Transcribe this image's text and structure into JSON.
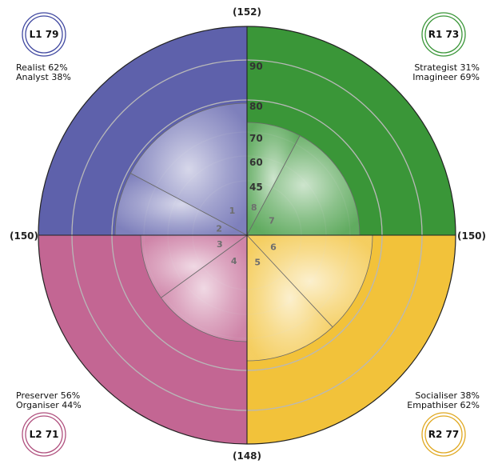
{
  "chart_data": {
    "type": "polar-area",
    "title": "",
    "axis_totals": {
      "top": "(152)",
      "left": "(150)",
      "right": "(150)",
      "bottom": "(148)"
    },
    "ring_ticks": [
      "45",
      "60",
      "70",
      "80",
      "90"
    ],
    "ring_values": [
      45,
      60,
      70,
      80,
      90
    ],
    "quadrants": [
      {
        "id": "L1",
        "badge": "L1 79",
        "color": "#5e61ab",
        "ring_color": "#4048a0",
        "lines": [
          "Realist 62%",
          "Analyst 38%"
        ],
        "corner": "top-left"
      },
      {
        "id": "R1",
        "badge": "R1 73",
        "color": "#3a9638",
        "ring_color": "#3a9638",
        "lines": [
          "Strategist 31%",
          "Imagineer 69%"
        ],
        "corner": "top-right"
      },
      {
        "id": "R2",
        "badge": "R2 77",
        "color": "#f2c23a",
        "ring_color": "#e0a820",
        "lines": [
          "Socialiser 38%",
          "Empathiser 62%"
        ],
        "corner": "bottom-right"
      },
      {
        "id": "L2",
        "badge": "L2 71",
        "color": "#c36693",
        "ring_color": "#b0507e",
        "lines": [
          "Preserver 56%",
          "Organiser 44%"
        ],
        "corner": "bottom-left"
      }
    ],
    "wedges": [
      {
        "quadrant": "R1",
        "label": "8",
        "start_deg": 0,
        "end_deg": 28,
        "value": 73
      },
      {
        "quadrant": "R1",
        "label": "7",
        "start_deg": 28,
        "end_deg": 90,
        "value": 73
      },
      {
        "quadrant": "R2",
        "label": "6",
        "start_deg": 90,
        "end_deg": 137,
        "value": 77
      },
      {
        "quadrant": "R2",
        "label": "5",
        "start_deg": 137,
        "end_deg": 180,
        "value": 77
      },
      {
        "quadrant": "L2",
        "label": "4",
        "start_deg": 180,
        "end_deg": 234,
        "value": 71
      },
      {
        "quadrant": "L2",
        "label": "3",
        "start_deg": 234,
        "end_deg": 270,
        "value": 71
      },
      {
        "quadrant": "L1",
        "label": "2",
        "start_deg": 270,
        "end_deg": 298,
        "value": 79
      },
      {
        "quadrant": "L1",
        "label": "1",
        "start_deg": 298,
        "end_deg": 360,
        "value": 79
      }
    ]
  }
}
